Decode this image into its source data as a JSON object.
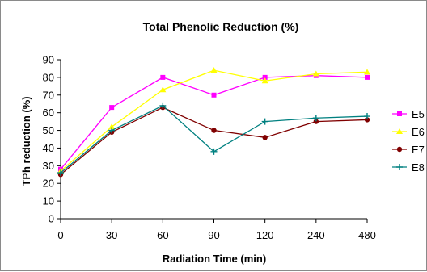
{
  "chart_data": {
    "type": "line",
    "title": "Total Phenolic Reduction (%)",
    "xlabel": "Radiation Time (min)",
    "ylabel": "TPh reduction (%)",
    "categories": [
      "0",
      "30",
      "60",
      "90",
      "120",
      "240",
      "480"
    ],
    "ylim": [
      0,
      90
    ],
    "yticks": [
      0,
      10,
      20,
      30,
      40,
      50,
      60,
      70,
      80,
      90
    ],
    "grid": false,
    "legend_position": "right",
    "series": [
      {
        "name": "E5",
        "color": "#ff00ff",
        "marker": "square",
        "values": [
          28,
          63,
          80,
          70,
          80,
          81,
          80
        ]
      },
      {
        "name": "E6",
        "color": "#ffff00",
        "marker": "triangle",
        "values": [
          27,
          52,
          73,
          84,
          78,
          82,
          83
        ]
      },
      {
        "name": "E7",
        "color": "#800000",
        "marker": "circle",
        "values": [
          25,
          49,
          63,
          50,
          46,
          55,
          56
        ]
      },
      {
        "name": "E8",
        "color": "#008080",
        "marker": "cross",
        "values": [
          26,
          50,
          64,
          38,
          55,
          57,
          58
        ]
      }
    ]
  }
}
